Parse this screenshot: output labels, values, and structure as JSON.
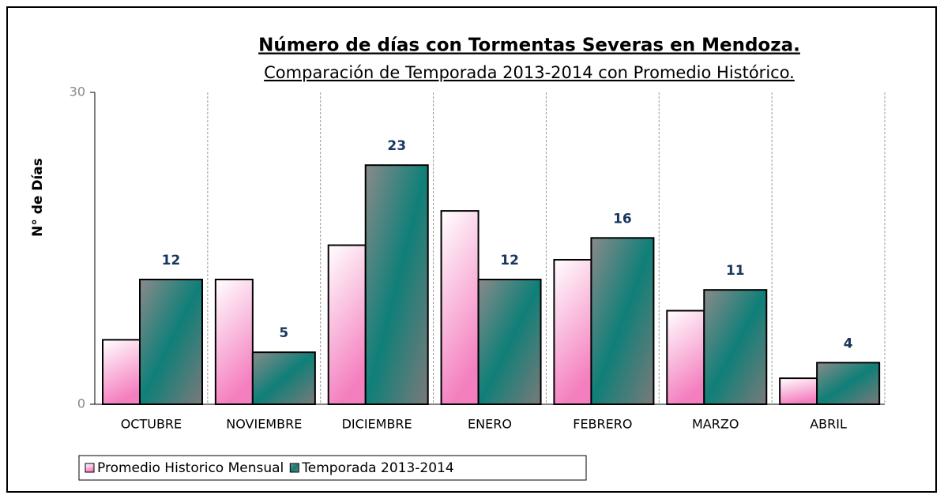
{
  "chart_data": {
    "type": "bar",
    "title": "Número de días con Tormentas Severas en Mendoza.",
    "subtitle": "Comparación de Temporada 2013-2014 con Promedio Histórico.",
    "y_label": "N° de Días",
    "categories": [
      "OCTUBRE",
      "NOVIEMBRE",
      "DICIEMBRE",
      "ENERO",
      "FEBRERO",
      "MARZO",
      "ABRIL"
    ],
    "series": [
      {
        "name": "Promedio Historico Mensual",
        "color": "#f47fbf",
        "values": [
          6.2,
          12,
          15.3,
          18.6,
          13.9,
          9,
          2.5
        ]
      },
      {
        "name": "Temporada 2013-2014",
        "color": "#0f7f78",
        "values": [
          12,
          5,
          23,
          12,
          16,
          11,
          4
        ]
      }
    ],
    "ylim": [
      0,
      30
    ],
    "yticks": [
      0,
      30
    ],
    "legend": "bottom-left"
  }
}
